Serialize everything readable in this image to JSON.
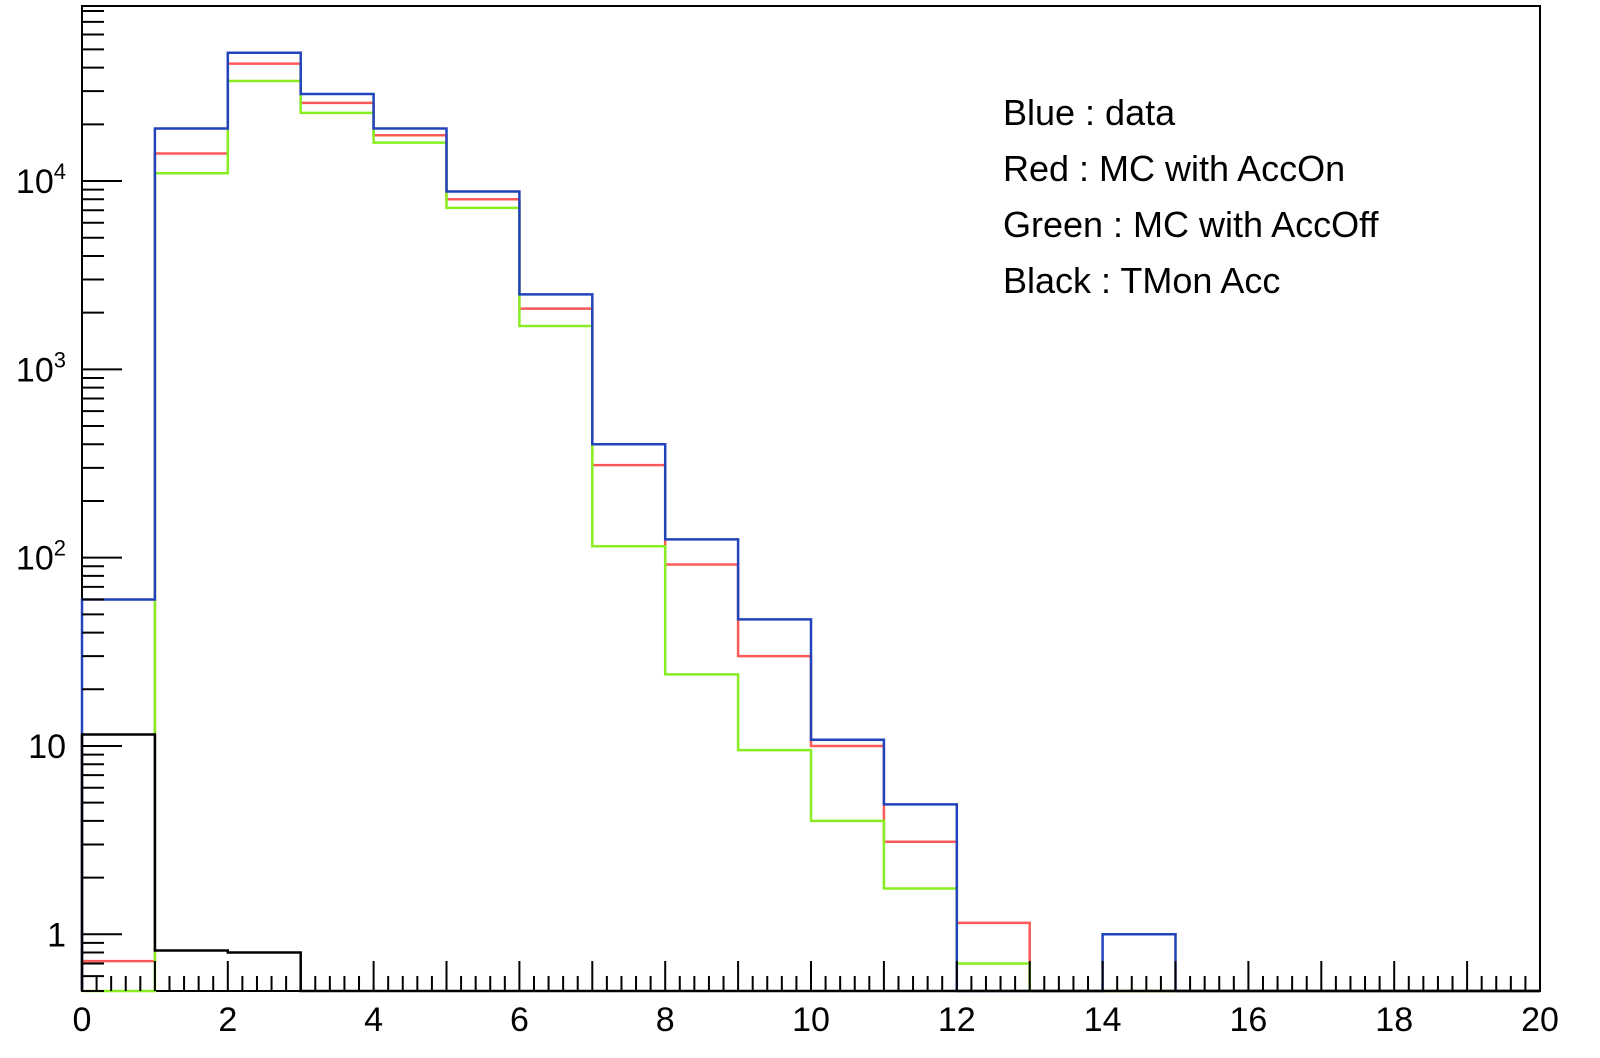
{
  "chart_data": {
    "type": "histogram",
    "scale": {
      "x": "linear",
      "y": "log"
    },
    "xlim": [
      0,
      20
    ],
    "ylim": [
      0.5,
      85000
    ],
    "bin_edges": [
      0,
      1,
      2,
      3,
      4,
      5,
      6,
      7,
      8,
      9,
      10,
      11,
      12,
      13,
      14,
      15,
      16,
      17,
      18,
      19,
      20
    ],
    "x_tick_labels": [
      "0",
      "2",
      "4",
      "6",
      "8",
      "10",
      "12",
      "14",
      "16",
      "18",
      "20"
    ],
    "x_tick_values": [
      0,
      2,
      4,
      6,
      8,
      10,
      12,
      14,
      16,
      18,
      20
    ],
    "y_tick_labels": [
      {
        "value": 1,
        "base": "1",
        "exp": ""
      },
      {
        "value": 10,
        "base": "10",
        "exp": ""
      },
      {
        "value": 100,
        "base": "10",
        "exp": "2"
      },
      {
        "value": 1000,
        "base": "10",
        "exp": "3"
      },
      {
        "value": 10000,
        "base": "10",
        "exp": "4"
      }
    ],
    "annotations": [
      "Blue : data",
      "Red : MC with AccOn",
      "Green : MC with AccOff",
      "Black : TMon Acc"
    ],
    "series": [
      {
        "color": "#ff5a5a",
        "values": [
          0.72,
          14000,
          42000,
          26000,
          17500,
          8000,
          2100,
          310,
          92,
          30,
          10,
          3.1,
          1.15,
          0,
          0,
          0,
          0,
          0,
          0,
          0
        ]
      },
      {
        "color": "#88ee22",
        "values": [
          0,
          11000,
          34000,
          23000,
          16000,
          7200,
          1700,
          115,
          24,
          9.5,
          4,
          1.75,
          0.7,
          0,
          0,
          0,
          0,
          0,
          0,
          0
        ]
      },
      {
        "color": "#2244bb",
        "values": [
          60,
          19000,
          48000,
          29000,
          19000,
          8800,
          2500,
          400,
          125,
          47,
          10.8,
          4.9,
          0,
          0,
          1,
          0,
          0,
          0,
          0,
          0
        ]
      },
      {
        "color": "#000000",
        "values": [
          11.5,
          0.82,
          0.8,
          0,
          0,
          0,
          0,
          0,
          0,
          0,
          0,
          0,
          0,
          0,
          0,
          0,
          0,
          0,
          0,
          0
        ]
      }
    ]
  }
}
